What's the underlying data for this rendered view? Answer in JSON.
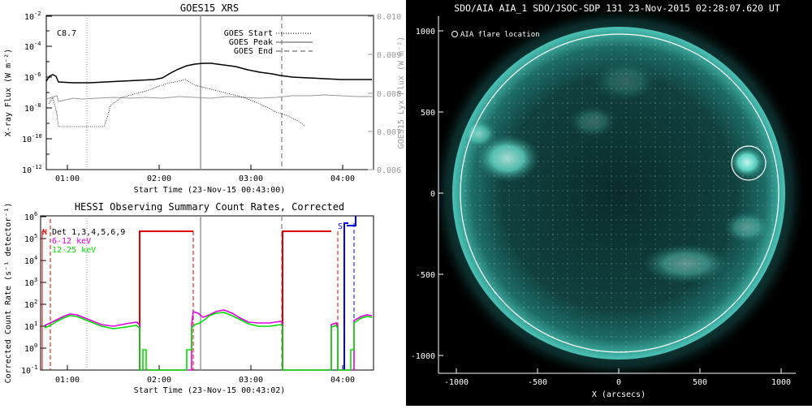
{
  "goes": {
    "title": "GOES15 XRS",
    "class_label": "C8.7",
    "ylabel": "X-ray Flux (W m⁻²)",
    "y2label": "GOES15 Lyx Flux (W m⁻²)",
    "xlabel": "Start Time (23-Nov-15 00:43:00)",
    "legend": [
      "GOES Start",
      "GOES Peak",
      "GOES End"
    ]
  },
  "hessi": {
    "title": "HESSI Observing Summary Count Rates, Corrected",
    "ylabel": "Corrected Count Rate (s⁻¹ detector⁻¹)",
    "xlabel": "Start Time (23-Nov-15 00:43:02)",
    "legend": [
      "Det 1,3,4,5,6,9",
      "6-12 keV",
      "12-25 keV"
    ],
    "flags": [
      "N",
      "S"
    ]
  },
  "aia": {
    "title": "SDO/AIA AIA_1 SDO/JSOC-SDP 131 23-Nov-2015 02:28:07.620 UT",
    "legend": "AIA flare location",
    "xlabel": "X (arcsecs)"
  },
  "chart_data": [
    {
      "type": "line",
      "title": "GOES15 XRS",
      "xlabel": "Start Time (23-Nov-15 00:43:00)",
      "ylabel": "X-ray Flux (W m-2)",
      "y2label": "GOES15 Lyx Flux (W m-2)",
      "ylog": true,
      "ylim": [
        1e-12,
        0.01
      ],
      "y2lim": [
        0.006,
        0.01
      ],
      "xlim": [
        "00:43",
        "04:20"
      ],
      "x_ticks": [
        "01:00",
        "02:00",
        "03:00",
        "04:00"
      ],
      "y_ticks": [
        "10^-12",
        "10^-10",
        "10^-8",
        "10^-6",
        "10^-4",
        "10^-2"
      ],
      "y2_ticks": [
        "0.006",
        "0.007",
        "0.008",
        "0.009",
        "0.010"
      ],
      "annotation": "C8.7",
      "markers": [
        {
          "name": "GOES Start",
          "x": "01:10",
          "style": "dotted"
        },
        {
          "name": "GOES Peak",
          "x": "02:28",
          "style": "solid"
        },
        {
          "name": "GOES End",
          "x": "03:20",
          "style": "dashed"
        }
      ],
      "series": [
        {
          "x": [
            "00:43",
            "00:48",
            "00:52",
            "00:57",
            "01:05",
            "01:20",
            "01:40",
            "02:00",
            "02:15",
            "02:28",
            "02:40",
            "03:00",
            "03:20",
            "03:40",
            "04:00",
            "04:20"
          ],
          "values": [
            1.2e-07,
            1.8e-06,
            1e-06,
            7e-07,
            7e-07,
            7e-07,
            7.5e-07,
            9e-07,
            2.5e-06,
            9e-06,
            9e-06,
            5.5e-06,
            3e-06,
            2e-06,
            1.6e-06,
            1.6e-06
          ]
        },
        {
          "x": [
            "00:48",
            "01:10",
            "01:20",
            "01:35",
            "01:40",
            "02:00",
            "02:28",
            "02:40",
            "03:00",
            "03:20",
            "03:35"
          ],
          "values": [
            2e-08,
            1.2e-09,
            1.2e-09,
            1.2e-09,
            3e-09,
            4e-08,
            6e-07,
            3e-07,
            6e-08,
            1e-08,
            1.5e-09
          ]
        },
        {
          "axis": "y2",
          "x": [
            "00:43",
            "01:00",
            "02:00",
            "03:00",
            "04:00",
            "04:20"
          ],
          "values": [
            0.0079,
            0.0079,
            0.0079,
            0.0079,
            0.008,
            0.008
          ]
        }
      ]
    },
    {
      "type": "line",
      "title": "HESSI Observing Summary Count Rates, Corrected",
      "xlabel": "Start Time (23-Nov-15 00:43:02)",
      "ylabel": "Corrected Count Rate (s-1 detector-1)",
      "ylog": true,
      "ylim": [
        0.1,
        1000000
      ],
      "xlim": [
        "00:43",
        "04:20"
      ],
      "x_ticks": [
        "01:00",
        "02:00",
        "03:00",
        "04:00"
      ],
      "y_ticks": [
        "10^-1",
        "10^0",
        "10^1",
        "10^2",
        "10^3",
        "10^4",
        "10^5",
        "10^6"
      ],
      "series": [
        {
          "name": "6-12 keV",
          "x": [
            "00:45",
            "01:00",
            "01:15",
            "01:35",
            "01:45",
            "02:35",
            "02:45",
            "03:00",
            "03:15",
            "03:25",
            "03:56",
            "04:05",
            "04:20"
          ],
          "values": [
            12,
            30,
            25,
            12,
            12,
            12,
            30,
            45,
            25,
            15,
            12,
            15,
            30
          ]
        },
        {
          "name": "12-25 keV",
          "x": [
            "00:45",
            "01:00",
            "01:15",
            "01:35",
            "01:45",
            "02:35",
            "02:45",
            "03:00",
            "03:15",
            "03:25",
            "03:56",
            "04:05",
            "04:20"
          ],
          "values": [
            10,
            25,
            20,
            10,
            10,
            10,
            20,
            30,
            20,
            12,
            10,
            12,
            25
          ]
        }
      ]
    }
  ]
}
